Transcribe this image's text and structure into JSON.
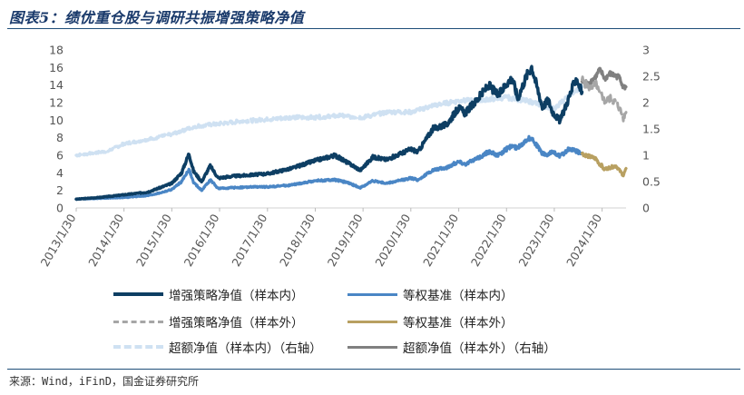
{
  "page": {
    "title": "图表5：绩优重仓股与调研共振增强策略净值",
    "source": "来源：Wind，iFinD，国金证券研究所"
  },
  "chart_data": {
    "type": "line",
    "title": "图表5：绩优重仓股与调研共振增强策略净值",
    "xlabel": "",
    "ylabel_left": "",
    "ylabel_right": "",
    "x_range": [
      "2013/1/30",
      "2024/7/31"
    ],
    "ylim_left": [
      0,
      18
    ],
    "ylim_right": [
      0,
      3
    ],
    "yticks_left": [
      0,
      2,
      4,
      6,
      8,
      10,
      12,
      14,
      16,
      18
    ],
    "yticks_right": [
      "0",
      "0.5",
      "1",
      "1.5",
      "2",
      "2.5",
      "3"
    ],
    "xticks": [
      "2013/1/30",
      "2014/1/30",
      "2015/1/30",
      "2016/1/30",
      "2017/1/30",
      "2018/1/30",
      "2019/1/30",
      "2020/1/30",
      "2021/1/30",
      "2022/1/30",
      "2023/1/30",
      "2024/1/30"
    ],
    "grid": false,
    "legend_position": "bottom",
    "series": [
      {
        "name": "增强策略净值（样本内）",
        "axis": "left",
        "color": "#0d3e63",
        "dash": "",
        "width": 3.5,
        "points": [
          [
            "2013/1/30",
            1.0
          ],
          [
            "2013/7/30",
            1.2
          ],
          [
            "2014/1/30",
            1.5
          ],
          [
            "2014/7/30",
            1.8
          ],
          [
            "2014/10/30",
            2.3
          ],
          [
            "2015/1/30",
            2.8
          ],
          [
            "2015/4/15",
            4.0
          ],
          [
            "2015/6/10",
            6.2
          ],
          [
            "2015/7/15",
            4.2
          ],
          [
            "2015/9/15",
            3.0
          ],
          [
            "2015/11/20",
            4.8
          ],
          [
            "2016/1/20",
            3.4
          ],
          [
            "2016/4/30",
            3.6
          ],
          [
            "2016/10/30",
            3.8
          ],
          [
            "2017/1/30",
            3.9
          ],
          [
            "2017/7/30",
            4.5
          ],
          [
            "2018/1/30",
            5.4
          ],
          [
            "2018/6/30",
            6.0
          ],
          [
            "2018/9/30",
            5.2
          ],
          [
            "2019/1/10",
            4.3
          ],
          [
            "2019/4/15",
            5.8
          ],
          [
            "2019/7/30",
            5.5
          ],
          [
            "2020/1/30",
            6.7
          ],
          [
            "2020/3/25",
            6.4
          ],
          [
            "2020/7/15",
            9.0
          ],
          [
            "2020/10/30",
            9.5
          ],
          [
            "2021/1/30",
            11.4
          ],
          [
            "2021/3/20",
            10.8
          ],
          [
            "2021/6/30",
            12.5
          ],
          [
            "2021/9/15",
            14.0
          ],
          [
            "2021/11/30",
            12.8
          ],
          [
            "2022/1/30",
            14.2
          ],
          [
            "2022/3/15",
            14.8
          ],
          [
            "2022/4/26",
            12.5
          ],
          [
            "2022/6/30",
            15.0
          ],
          [
            "2022/8/10",
            16.1
          ],
          [
            "2022/10/31",
            11.5
          ],
          [
            "2022/12/15",
            12.3
          ],
          [
            "2023/1/15",
            11.0
          ],
          [
            "2023/3/15",
            9.9
          ],
          [
            "2023/5/20",
            12.5
          ],
          [
            "2023/7/15",
            14.8
          ],
          [
            "2023/8/30",
            13.2
          ]
        ]
      },
      {
        "name": "等权基准（样本内）",
        "axis": "left",
        "color": "#4a86c5",
        "dash": "",
        "width": 3.2,
        "points": [
          [
            "2013/1/30",
            1.0
          ],
          [
            "2013/7/30",
            1.1
          ],
          [
            "2014/1/30",
            1.2
          ],
          [
            "2014/7/30",
            1.4
          ],
          [
            "2014/10/30",
            1.7
          ],
          [
            "2015/1/30",
            2.1
          ],
          [
            "2015/4/15",
            3.0
          ],
          [
            "2015/6/10",
            4.4
          ],
          [
            "2015/7/15",
            2.9
          ],
          [
            "2015/9/15",
            2.0
          ],
          [
            "2015/11/20",
            3.2
          ],
          [
            "2016/1/20",
            2.2
          ],
          [
            "2016/4/30",
            2.3
          ],
          [
            "2016/10/30",
            2.4
          ],
          [
            "2017/1/30",
            2.4
          ],
          [
            "2017/7/30",
            2.6
          ],
          [
            "2018/1/30",
            3.1
          ],
          [
            "2018/6/30",
            3.2
          ],
          [
            "2018/9/30",
            2.9
          ],
          [
            "2019/1/10",
            2.3
          ],
          [
            "2019/4/15",
            3.1
          ],
          [
            "2019/7/30",
            2.8
          ],
          [
            "2020/1/30",
            3.4
          ],
          [
            "2020/3/25",
            3.2
          ],
          [
            "2020/7/15",
            4.3
          ],
          [
            "2020/10/30",
            4.6
          ],
          [
            "2021/1/30",
            5.3
          ],
          [
            "2021/3/20",
            5.0
          ],
          [
            "2021/6/30",
            5.7
          ],
          [
            "2021/9/15",
            6.4
          ],
          [
            "2021/11/30",
            6.0
          ],
          [
            "2022/1/30",
            6.7
          ],
          [
            "2022/3/15",
            7.1
          ],
          [
            "2022/4/26",
            6.8
          ],
          [
            "2022/6/30",
            7.8
          ],
          [
            "2022/8/10",
            8.0
          ],
          [
            "2022/10/31",
            6.2
          ],
          [
            "2022/12/15",
            6.0
          ],
          [
            "2023/1/15",
            6.5
          ],
          [
            "2023/3/15",
            5.9
          ],
          [
            "2023/5/20",
            6.7
          ],
          [
            "2023/7/15",
            6.5
          ],
          [
            "2023/8/30",
            6.2
          ]
        ]
      },
      {
        "name": "增强策略净值（样本外）",
        "axis": "left",
        "color": "#a6a6a6",
        "dash": "8,5",
        "width": 3.0,
        "points": [
          [
            "2023/8/30",
            14.6
          ],
          [
            "2023/10/15",
            13.8
          ],
          [
            "2023/12/15",
            14.0
          ],
          [
            "2024/1/10",
            13.0
          ],
          [
            "2024/1/31",
            12.8
          ],
          [
            "2024/2/20",
            12.0
          ],
          [
            "2024/3/30",
            12.5
          ],
          [
            "2024/5/15",
            12.0
          ],
          [
            "2024/6/15",
            11.2
          ],
          [
            "2024/7/10",
            10.2
          ],
          [
            "2024/7/31",
            10.9
          ]
        ]
      },
      {
        "name": "等权基准（样本外）",
        "axis": "left",
        "color": "#b8a061",
        "dash": "",
        "width": 3.2,
        "points": [
          [
            "2023/8/30",
            6.2
          ],
          [
            "2023/10/15",
            5.9
          ],
          [
            "2023/12/15",
            5.6
          ],
          [
            "2024/1/10",
            5.0
          ],
          [
            "2024/1/31",
            4.8
          ],
          [
            "2024/2/10",
            4.4
          ],
          [
            "2024/3/30",
            4.6
          ],
          [
            "2024/5/15",
            4.8
          ],
          [
            "2024/6/15",
            4.2
          ],
          [
            "2024/7/10",
            3.7
          ],
          [
            "2024/7/31",
            4.5
          ]
        ]
      },
      {
        "name": "超额净值（样本内）（右轴）",
        "axis": "right",
        "color": "#cfe1f2",
        "dash": "8,5",
        "width": 3.5,
        "points": [
          [
            "2013/1/30",
            1.0
          ],
          [
            "2013/9/30",
            1.08
          ],
          [
            "2014/1/30",
            1.22
          ],
          [
            "2014/7/30",
            1.3
          ],
          [
            "2015/1/30",
            1.4
          ],
          [
            "2015/7/30",
            1.55
          ],
          [
            "2016/1/30",
            1.6
          ],
          [
            "2016/7/30",
            1.65
          ],
          [
            "2017/1/30",
            1.68
          ],
          [
            "2017/7/30",
            1.72
          ],
          [
            "2018/1/30",
            1.72
          ],
          [
            "2018/7/30",
            1.75
          ],
          [
            "2019/1/30",
            1.72
          ],
          [
            "2019/7/30",
            1.82
          ],
          [
            "2020/1/30",
            1.82
          ],
          [
            "2020/7/30",
            1.95
          ],
          [
            "2021/1/30",
            2.03
          ],
          [
            "2021/7/30",
            2.05
          ],
          [
            "2022/1/30",
            2.1
          ],
          [
            "2022/7/30",
            2.02
          ],
          [
            "2022/10/30",
            1.95
          ],
          [
            "2023/1/30",
            1.88
          ],
          [
            "2023/5/30",
            2.15
          ],
          [
            "2023/8/30",
            2.3
          ]
        ]
      },
      {
        "name": "超额净值（样本外）（右轴）",
        "axis": "right",
        "color": "#808080",
        "dash": "",
        "width": 3.2,
        "points": [
          [
            "2023/8/30",
            2.4
          ],
          [
            "2023/10/15",
            2.35
          ],
          [
            "2023/12/15",
            2.5
          ],
          [
            "2024/1/10",
            2.62
          ],
          [
            "2024/1/31",
            2.55
          ],
          [
            "2024/2/20",
            2.45
          ],
          [
            "2024/3/30",
            2.55
          ],
          [
            "2024/5/15",
            2.5
          ],
          [
            "2024/6/15",
            2.48
          ],
          [
            "2024/7/10",
            2.28
          ],
          [
            "2024/7/31",
            2.3
          ]
        ]
      }
    ]
  }
}
